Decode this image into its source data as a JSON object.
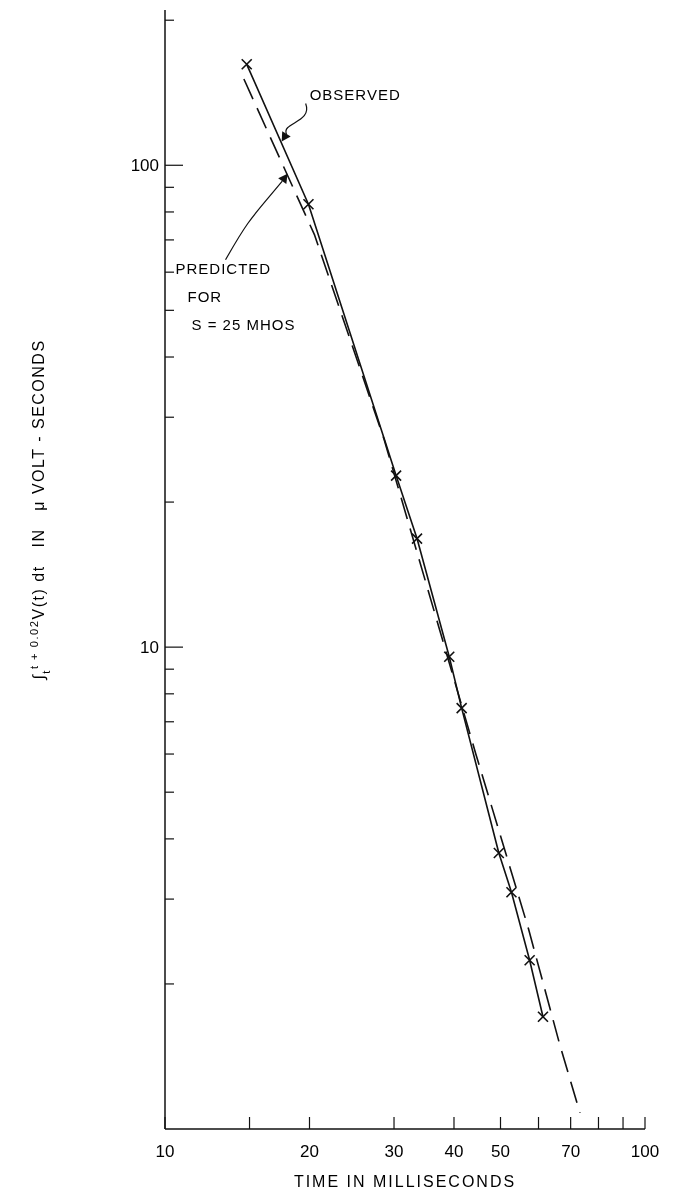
{
  "chart_data": {
    "type": "line",
    "xlabel": "TIME  IN  MILLISECONDS",
    "ylabel": "∫$_{t}$$^{t + 0.02}$V(t) dt   IN   μ VOLT - SECONDS",
    "log": "xy",
    "xlim": [
      10,
      100
    ],
    "ylim": [
      1,
      210
    ],
    "xticks": [
      10,
      {
        "value": 15,
        "label": null
      },
      20,
      30,
      40,
      50,
      {
        "value": 60,
        "label": null
      },
      70,
      {
        "value": 80,
        "label": null
      },
      {
        "value": 90,
        "label": null
      },
      100
    ],
    "yticks": [
      {
        "value": 2,
        "label": null
      },
      {
        "value": 3,
        "label": null
      },
      {
        "value": 4,
        "label": null
      },
      {
        "value": 5,
        "label": null
      },
      {
        "value": 6,
        "label": null
      },
      {
        "value": 7,
        "label": null
      },
      {
        "value": 8,
        "label": null
      },
      {
        "value": 9,
        "label": null
      },
      10,
      {
        "value": 20,
        "label": null
      },
      {
        "value": 30,
        "label": null
      },
      {
        "value": 40,
        "label": null
      },
      {
        "value": 50,
        "label": null
      },
      {
        "value": 60,
        "label": null
      },
      {
        "value": 70,
        "label": null
      },
      {
        "value": 80,
        "label": null
      },
      {
        "value": 90,
        "label": null
      },
      100,
      {
        "value": 200,
        "label": null
      }
    ],
    "grid": false,
    "series": [
      {
        "color": "#111111",
        "marker": "cross",
        "line_style": "solid",
        "x": [
          14.8,
          19.9,
          30.3,
          33.5,
          39.1,
          41.5,
          49.6,
          52.7,
          57.5,
          61.3
        ],
        "values": [
          162,
          83,
          22.7,
          16.8,
          9.55,
          7.47,
          3.74,
          3.1,
          2.24,
          1.71
        ]
      },
      {
        "color": "#111111",
        "marker": "none",
        "line_style": "dashed",
        "x": [
          14.6,
          20.5,
          28.6,
          44.4,
          57.2,
          66.4,
          73.2
        ],
        "values": [
          151,
          71.6,
          27,
          6.01,
          2.6,
          1.5,
          1.08
        ]
      }
    ],
    "annotations": [
      {
        "text": "OBSERVED",
        "x": 17.5,
        "y": 112
      },
      {
        "text": "PREDICTED\nFOR\nS = 25 MHOS",
        "x": 18,
        "y": 96
      }
    ]
  }
}
